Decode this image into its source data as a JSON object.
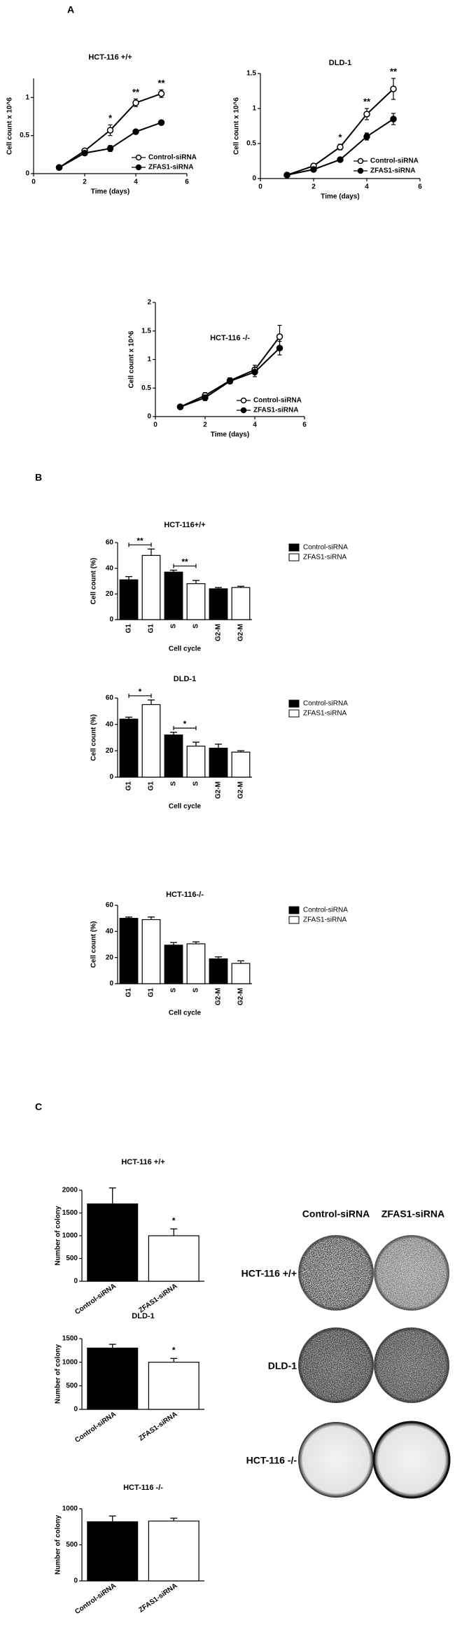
{
  "panel_labels": [
    "A",
    "B",
    "C"
  ],
  "plates": {
    "columns": [
      "Control-siRNA",
      "ZFAS1-siRNA"
    ],
    "rows": [
      "HCT-116 +/+",
      "DLD-1",
      "HCT-116 -/-"
    ]
  },
  "chart_data": [
    {
      "type": "line",
      "title": "HCT-116 +/+",
      "xlabel": "Time (days)",
      "ylabel": "Cell count x 10^6",
      "x": [
        1,
        2,
        3,
        4,
        5
      ],
      "xlim": [
        0,
        6
      ],
      "xticks": [
        0,
        2,
        4,
        6
      ],
      "ylim": [
        0,
        1.25
      ],
      "yticks": [
        0,
        0.5,
        1
      ],
      "series": [
        {
          "name": "Control-siRNA",
          "color": "#000000",
          "marker": "open",
          "values": [
            0.08,
            0.3,
            0.57,
            0.93,
            1.05
          ],
          "errors": [
            0.02,
            0.03,
            0.07,
            0.05,
            0.05
          ]
        },
        {
          "name": "ZFAS1-siRNA",
          "color": "#000000",
          "marker": "filled",
          "values": [
            0.08,
            0.27,
            0.33,
            0.55,
            0.67
          ],
          "errors": [
            0.02,
            0.02,
            0.04,
            0.02,
            0.03
          ]
        }
      ],
      "annotations": [
        {
          "text": "*",
          "x": 3
        },
        {
          "text": "**",
          "x": 4
        },
        {
          "text": "**",
          "x": 5
        }
      ]
    },
    {
      "type": "line",
      "title": "DLD-1",
      "xlabel": "Time (days)",
      "ylabel": "Cell count x 10^6",
      "x": [
        1,
        2,
        3,
        4,
        5
      ],
      "xlim": [
        0,
        6
      ],
      "xticks": [
        0,
        2,
        4,
        6
      ],
      "ylim": [
        0,
        1.5
      ],
      "yticks": [
        0,
        0.5,
        1,
        1.5
      ],
      "series": [
        {
          "name": "Control-siRNA",
          "color": "#000000",
          "marker": "open",
          "values": [
            0.05,
            0.18,
            0.45,
            0.92,
            1.28
          ],
          "errors": [
            0.01,
            0.02,
            0.04,
            0.08,
            0.15
          ]
        },
        {
          "name": "ZFAS1-siRNA",
          "color": "#000000",
          "marker": "filled",
          "values": [
            0.05,
            0.13,
            0.27,
            0.6,
            0.85
          ],
          "errors": [
            0.01,
            0.02,
            0.03,
            0.05,
            0.08
          ]
        }
      ],
      "annotations": [
        {
          "text": "*",
          "x": 3
        },
        {
          "text": "**",
          "x": 4
        },
        {
          "text": "**",
          "x": 5
        }
      ]
    },
    {
      "type": "line",
      "title": "HCT-116 -/-",
      "xlabel": "Time (days)",
      "ylabel": "Cell count x 10^6",
      "x": [
        1,
        2,
        3,
        4,
        5
      ],
      "xlim": [
        0,
        6
      ],
      "xticks": [
        0,
        2,
        4,
        6
      ],
      "ylim": [
        0,
        2
      ],
      "yticks": [
        0,
        0.5,
        1,
        1.5,
        2
      ],
      "series": [
        {
          "name": "Control-siRNA",
          "color": "#000000",
          "marker": "open",
          "values": [
            0.17,
            0.37,
            0.63,
            0.82,
            1.4
          ],
          "errors": [
            0.02,
            0.05,
            0.05,
            0.08,
            0.2
          ]
        },
        {
          "name": "ZFAS1-siRNA",
          "color": "#000000",
          "marker": "filled",
          "values": [
            0.17,
            0.33,
            0.62,
            0.78,
            1.2
          ],
          "errors": [
            0.02,
            0.05,
            0.04,
            0.08,
            0.12
          ]
        }
      ]
    },
    {
      "type": "bar",
      "title": "HCT-116+/+",
      "xlabel": "Cell  cycle",
      "ylabel": "Cell count (%)",
      "categories": [
        "G1",
        "G1",
        "S",
        "S",
        "G2-M",
        "G2-M"
      ],
      "ylim": [
        0,
        60
      ],
      "yticks": [
        0,
        20,
        40,
        60
      ],
      "series": [
        {
          "name": "Control-siRNA",
          "color": "#000000",
          "values": [
            31,
            null,
            37,
            null,
            24,
            null
          ],
          "errors": [
            2.5,
            null,
            1.5,
            null,
            1,
            null
          ]
        },
        {
          "name": "ZFAS1-siRNA",
          "color": "#ffffff",
          "values": [
            null,
            50,
            null,
            28,
            null,
            25
          ],
          "errors": [
            null,
            5,
            null,
            2.5,
            null,
            1
          ]
        }
      ],
      "annotations": [
        {
          "text": "**",
          "x": [
            0,
            1
          ]
        },
        {
          "text": "**",
          "x": [
            2,
            3
          ]
        }
      ]
    },
    {
      "type": "bar",
      "title": "DLD-1",
      "xlabel": "Cell cycle",
      "ylabel": "Cell count (%)",
      "categories": [
        "G1",
        "G1",
        "S",
        "S",
        "G2-M",
        "G2-M"
      ],
      "ylim": [
        0,
        60
      ],
      "yticks": [
        0,
        20,
        40,
        60
      ],
      "series": [
        {
          "name": "Control-siRNA",
          "color": "#000000",
          "values": [
            44,
            null,
            32,
            null,
            22,
            null
          ],
          "errors": [
            1.5,
            null,
            2,
            null,
            3,
            null
          ]
        },
        {
          "name": "ZFAS1-siRNA",
          "color": "#ffffff",
          "values": [
            null,
            55,
            null,
            23.5,
            null,
            19
          ],
          "errors": [
            null,
            3.5,
            null,
            3,
            null,
            1
          ]
        }
      ],
      "annotations": [
        {
          "text": "*",
          "x": [
            0,
            1
          ]
        },
        {
          "text": "*",
          "x": [
            2,
            3
          ]
        }
      ]
    },
    {
      "type": "bar",
      "title": "HCT-116-/-",
      "xlabel": "Cell  cycle",
      "ylabel": "Cell  count (%)",
      "categories": [
        "G1",
        "G1",
        "S",
        "S",
        "G2-M",
        "G2-M"
      ],
      "ylim": [
        0,
        60
      ],
      "yticks": [
        0,
        20,
        40,
        60
      ],
      "series": [
        {
          "name": "Control-siRNA",
          "color": "#000000",
          "values": [
            50,
            null,
            29.5,
            null,
            19,
            null
          ],
          "errors": [
            1,
            null,
            2,
            null,
            1.5,
            null
          ]
        },
        {
          "name": "ZFAS1-siRNA",
          "color": "#ffffff",
          "values": [
            null,
            49,
            null,
            30.5,
            null,
            15.5
          ],
          "errors": [
            null,
            2,
            null,
            1.5,
            null,
            2
          ]
        }
      ]
    },
    {
      "type": "bar",
      "title": "HCT-116 +/+",
      "ylabel": "Number of colony",
      "categories": [
        "Control-siRNA",
        "ZFAS1-siRNA"
      ],
      "ylim": [
        0,
        2000
      ],
      "yticks": [
        0,
        500,
        1000,
        1500,
        2000
      ],
      "series": [
        {
          "color": "#000000",
          "values": [
            1700,
            null
          ],
          "errors": [
            350,
            null
          ]
        },
        {
          "color": "#ffffff",
          "values": [
            null,
            1000
          ],
          "errors": [
            null,
            150
          ]
        }
      ],
      "annotations": [
        {
          "text": "*",
          "x": [
            1,
            1
          ]
        }
      ]
    },
    {
      "type": "bar",
      "title": "DLD-1",
      "ylabel": "Number of colony",
      "categories": [
        "Control-siRNA",
        "ZFAS1-siRNA"
      ],
      "ylim": [
        0,
        1500
      ],
      "yticks": [
        0,
        500,
        1000,
        1500
      ],
      "series": [
        {
          "color": "#000000",
          "values": [
            1300,
            null
          ],
          "errors": [
            80,
            null
          ]
        },
        {
          "color": "#ffffff",
          "values": [
            null,
            1000
          ],
          "errors": [
            null,
            80
          ]
        }
      ],
      "annotations": [
        {
          "text": "*",
          "x": [
            1,
            1
          ]
        }
      ]
    },
    {
      "type": "bar",
      "title": "HCT-116 -/-",
      "ylabel": "Number of colony",
      "categories": [
        "Control-siRNA",
        "ZFAS1-siRNA"
      ],
      "ylim": [
        0,
        1000
      ],
      "yticks": [
        0,
        500,
        1000
      ],
      "series": [
        {
          "color": "#000000",
          "values": [
            820,
            null
          ],
          "errors": [
            80,
            null
          ]
        },
        {
          "color": "#ffffff",
          "values": [
            null,
            830
          ],
          "errors": [
            null,
            40
          ]
        }
      ]
    }
  ]
}
